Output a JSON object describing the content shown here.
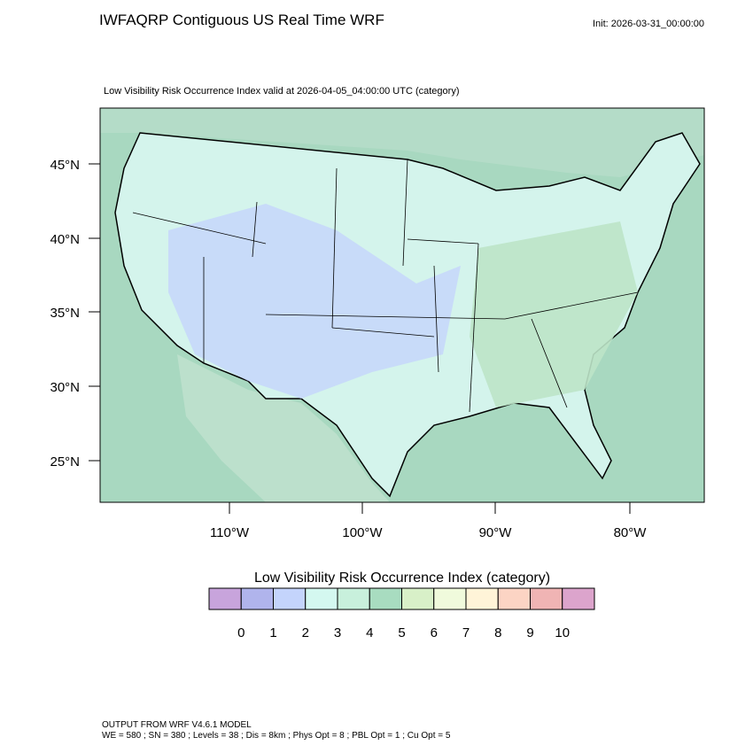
{
  "header": {
    "title": "IWFAQRP Contiguous US Real Time WRF",
    "init": "Init: 2026-03-31_00:00:00"
  },
  "map": {
    "subtitle": "Low Visibility Risk Occurrence Index valid at 2026-04-05_04:00:00 UTC   (category)",
    "lat_labels": [
      "45°N",
      "40°N",
      "35°N",
      "30°N",
      "25°N"
    ],
    "lon_labels": [
      "110°W",
      "100°W",
      "90°W",
      "80°W"
    ]
  },
  "colorbar": {
    "title": "Low Visibility Risk Occurrence Index  (category)",
    "labels": [
      0,
      1,
      2,
      3,
      4,
      5,
      6,
      7,
      8,
      9,
      10
    ],
    "colors": [
      "#c8a4dc",
      "#b0b4ec",
      "#c4d4fc",
      "#d4f8f0",
      "#c8f0dc",
      "#a8dcc0",
      "#d8f0c8",
      "#f0fadc",
      "#fff4d8",
      "#fcd4c4",
      "#f0b4b4",
      "#dca4cc"
    ]
  },
  "footer": {
    "line1": "OUTPUT FROM WRF V4.6.1 MODEL",
    "line2": "WE = 580 ; SN = 380 ; Levels = 38 ; Dis = 8km ; Phys Opt = 8 ; PBL Opt = 1 ; Cu Opt = 5"
  }
}
